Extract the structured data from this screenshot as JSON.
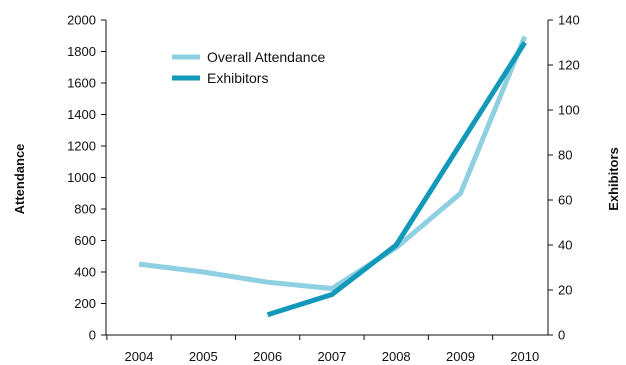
{
  "chart_data": {
    "type": "line",
    "categories": [
      "2004",
      "2005",
      "2006",
      "2007",
      "2008",
      "2009",
      "2010"
    ],
    "series": [
      {
        "name": "Overall Attendance",
        "axis": "left",
        "color": "#8ED0E2",
        "values": [
          450,
          400,
          335,
          295,
          555,
          900,
          1895
        ]
      },
      {
        "name": "Exhibitors",
        "axis": "right",
        "color": "#1298B8",
        "values": [
          null,
          null,
          9,
          18,
          40,
          85,
          130
        ]
      }
    ],
    "y_left": {
      "label": "Attendance",
      "min": 0,
      "max": 2000,
      "ticks": [
        0,
        200,
        400,
        600,
        800,
        1000,
        1200,
        1400,
        1600,
        1800,
        2000
      ]
    },
    "y_right": {
      "label": "Exhibitors",
      "min": 0,
      "max": 140,
      "ticks": [
        0,
        20,
        40,
        60,
        80,
        100,
        120,
        140
      ]
    },
    "grid": false,
    "legend_position": "top-left"
  }
}
